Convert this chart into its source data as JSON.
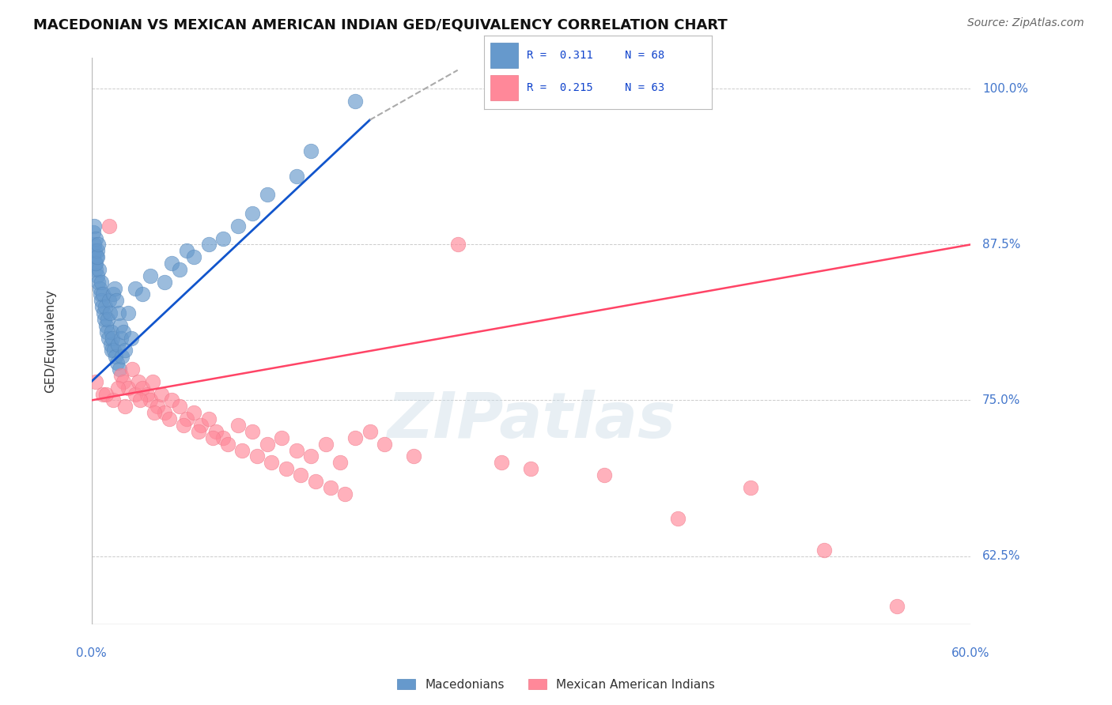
{
  "title": "MACEDONIAN VS MEXICAN AMERICAN INDIAN GED/EQUIVALENCY CORRELATION CHART",
  "source": "Source: ZipAtlas.com",
  "ylabel": "GED/Equivalency",
  "yticks": [
    100.0,
    87.5,
    75.0,
    62.5
  ],
  "xmin": 0.0,
  "xmax": 60.0,
  "ymin": 57.0,
  "ymax": 102.5,
  "blue_color": "#6699CC",
  "pink_color": "#FF8899",
  "blue_line_color": "#1155CC",
  "pink_line_color": "#FF4466",
  "dashed_line_color": "#AAAAAA",
  "mac_x": [
    0.1,
    0.15,
    0.2,
    0.25,
    0.3,
    0.35,
    0.4,
    0.45,
    0.5,
    0.55,
    0.6,
    0.65,
    0.7,
    0.75,
    0.8,
    0.85,
    0.9,
    0.95,
    1.0,
    1.05,
    1.1,
    1.15,
    1.2,
    1.25,
    1.3,
    1.35,
    1.4,
    1.45,
    1.5,
    1.55,
    1.6,
    1.65,
    1.7,
    1.75,
    1.8,
    1.85,
    1.9,
    1.95,
    2.0,
    2.1,
    2.2,
    2.3,
    2.5,
    2.7,
    3.0,
    3.5,
    4.0,
    5.0,
    5.5,
    6.0,
    6.5,
    7.0,
    8.0,
    9.0,
    10.0,
    11.0,
    12.0,
    14.0,
    15.0,
    18.0,
    0.12,
    0.18,
    0.22,
    0.28,
    0.32,
    0.38,
    0.42,
    0.48
  ],
  "mac_y": [
    87.0,
    86.5,
    87.5,
    86.0,
    85.5,
    86.5,
    85.0,
    84.5,
    85.5,
    84.0,
    83.5,
    84.5,
    83.0,
    82.5,
    83.5,
    82.0,
    81.5,
    82.5,
    81.0,
    80.5,
    81.5,
    80.0,
    83.0,
    82.0,
    79.5,
    80.5,
    79.0,
    80.0,
    83.5,
    79.0,
    84.0,
    78.5,
    83.0,
    78.0,
    79.5,
    82.0,
    77.5,
    81.0,
    80.0,
    78.5,
    80.5,
    79.0,
    82.0,
    80.0,
    84.0,
    83.5,
    85.0,
    84.5,
    86.0,
    85.5,
    87.0,
    86.5,
    87.5,
    88.0,
    89.0,
    90.0,
    91.5,
    93.0,
    95.0,
    99.0,
    88.5,
    89.0,
    87.0,
    88.0,
    86.0,
    87.0,
    86.5,
    87.5
  ],
  "mex_x": [
    0.3,
    0.8,
    1.2,
    1.5,
    2.0,
    2.2,
    2.5,
    2.8,
    3.0,
    3.2,
    3.5,
    3.8,
    4.0,
    4.2,
    4.5,
    4.8,
    5.0,
    5.5,
    6.0,
    6.5,
    7.0,
    7.5,
    8.0,
    8.5,
    9.0,
    10.0,
    11.0,
    12.0,
    13.0,
    14.0,
    15.0,
    16.0,
    17.0,
    18.0,
    20.0,
    22.0,
    25.0,
    28.0,
    30.0,
    35.0,
    40.0,
    45.0,
    50.0,
    55.0,
    1.0,
    1.8,
    2.3,
    3.3,
    4.3,
    5.3,
    6.3,
    7.3,
    8.3,
    9.3,
    10.3,
    11.3,
    12.3,
    13.3,
    14.3,
    15.3,
    16.3,
    17.3,
    19.0
  ],
  "mex_y": [
    76.5,
    75.5,
    89.0,
    75.0,
    77.0,
    76.5,
    76.0,
    77.5,
    75.5,
    76.5,
    76.0,
    75.5,
    75.0,
    76.5,
    74.5,
    75.5,
    74.0,
    75.0,
    74.5,
    73.5,
    74.0,
    73.0,
    73.5,
    72.5,
    72.0,
    73.0,
    72.5,
    71.5,
    72.0,
    71.0,
    70.5,
    71.5,
    70.0,
    72.0,
    71.5,
    70.5,
    87.5,
    70.0,
    69.5,
    69.0,
    65.5,
    68.0,
    63.0,
    58.5,
    75.5,
    76.0,
    74.5,
    75.0,
    74.0,
    73.5,
    73.0,
    72.5,
    72.0,
    71.5,
    71.0,
    70.5,
    70.0,
    69.5,
    69.0,
    68.5,
    68.0,
    67.5,
    72.5
  ]
}
